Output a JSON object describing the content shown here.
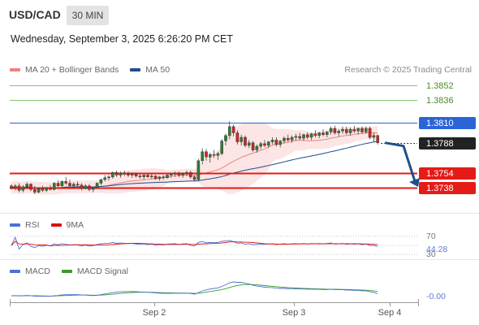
{
  "header": {
    "symbol": "USD/CAD",
    "interval": "30 MIN",
    "datetime": "Wednesday, September 3, 2025 6:26:20 PM CET"
  },
  "legend_price": [
    {
      "name": "MA 20 + Bollinger Bands",
      "color": "#f08080"
    },
    {
      "name": "MA 50",
      "color": "#1f4e8c"
    }
  ],
  "credit": "Research © 2025 Trading Central",
  "legend_rsi": [
    {
      "name": "RSI",
      "color": "#4a72d4"
    },
    {
      "name": "9MA",
      "color": "#dd1111"
    }
  ],
  "legend_macd": [
    {
      "name": "MACD",
      "color": "#4a72d4"
    },
    {
      "name": "MACD Signal",
      "color": "#3a9a2a"
    }
  ],
  "chart_data": {
    "type": "candlestick",
    "price_ylim": [
      1.371,
      1.386
    ],
    "levels": [
      {
        "value": 1.3852,
        "label": "1.3852",
        "kind": "resistance",
        "color": "#86c46b"
      },
      {
        "value": 1.3836,
        "label": "1.3836",
        "kind": "resistance",
        "color": "#86c46b"
      },
      {
        "value": 1.381,
        "label": "1.3810",
        "kind": "pivot",
        "color": "#2a64d6"
      },
      {
        "value": 1.3788,
        "label": "1.3788",
        "kind": "last",
        "color": "#222222"
      },
      {
        "value": 1.3754,
        "label": "1.3754",
        "kind": "support",
        "color": "#e41b17"
      },
      {
        "value": 1.3738,
        "label": "1.3738",
        "kind": "support",
        "color": "#e41b17"
      }
    ],
    "forecast_arrow": {
      "from": 1.3788,
      "to": 1.3738
    },
    "candles": [
      [
        1.374,
        1.3742,
        1.3736,
        1.3738
      ],
      [
        1.3738,
        1.3742,
        1.3735,
        1.374
      ],
      [
        1.374,
        1.3743,
        1.3733,
        1.3735
      ],
      [
        1.3735,
        1.3741,
        1.3733,
        1.3739
      ],
      [
        1.3739,
        1.3744,
        1.3737,
        1.3742
      ],
      [
        1.3742,
        1.3743,
        1.3734,
        1.3736
      ],
      [
        1.3736,
        1.374,
        1.3731,
        1.3733
      ],
      [
        1.3733,
        1.3738,
        1.3732,
        1.3737
      ],
      [
        1.3737,
        1.374,
        1.3733,
        1.3735
      ],
      [
        1.3735,
        1.3739,
        1.3733,
        1.3738
      ],
      [
        1.3738,
        1.3741,
        1.3735,
        1.3736
      ],
      [
        1.3736,
        1.3744,
        1.3735,
        1.3743
      ],
      [
        1.3743,
        1.3746,
        1.3738,
        1.374
      ],
      [
        1.374,
        1.3746,
        1.3739,
        1.3745
      ],
      [
        1.3745,
        1.375,
        1.3741,
        1.3743
      ],
      [
        1.3743,
        1.3747,
        1.3738,
        1.374
      ],
      [
        1.374,
        1.3744,
        1.3737,
        1.3742
      ],
      [
        1.3742,
        1.3745,
        1.3739,
        1.3741
      ],
      [
        1.3741,
        1.3743,
        1.3735,
        1.3737
      ],
      [
        1.3737,
        1.3742,
        1.3736,
        1.374
      ],
      [
        1.374,
        1.3742,
        1.3734,
        1.3736
      ],
      [
        1.3736,
        1.3739,
        1.3733,
        1.3738
      ],
      [
        1.3738,
        1.3744,
        1.3737,
        1.3743
      ],
      [
        1.3743,
        1.3748,
        1.3741,
        1.3747
      ],
      [
        1.3747,
        1.3752,
        1.3745,
        1.3749
      ],
      [
        1.3749,
        1.3752,
        1.3746,
        1.375
      ],
      [
        1.375,
        1.3756,
        1.3748,
        1.3755
      ],
      [
        1.3755,
        1.3757,
        1.375,
        1.3752
      ],
      [
        1.3752,
        1.3756,
        1.3749,
        1.3754
      ],
      [
        1.3754,
        1.3757,
        1.3751,
        1.3753
      ],
      [
        1.3753,
        1.3756,
        1.375,
        1.3752
      ],
      [
        1.3752,
        1.3755,
        1.3749,
        1.3753
      ],
      [
        1.3753,
        1.3755,
        1.3749,
        1.3751
      ],
      [
        1.3751,
        1.3754,
        1.3748,
        1.375
      ],
      [
        1.375,
        1.3753,
        1.3747,
        1.3752
      ],
      [
        1.3752,
        1.3754,
        1.3749,
        1.375
      ],
      [
        1.375,
        1.3753,
        1.3748,
        1.3751
      ],
      [
        1.3751,
        1.3752,
        1.3747,
        1.3748
      ],
      [
        1.3748,
        1.3751,
        1.3746,
        1.375
      ],
      [
        1.375,
        1.3752,
        1.3747,
        1.3749
      ],
      [
        1.3749,
        1.3753,
        1.3748,
        1.3752
      ],
      [
        1.3752,
        1.3754,
        1.3749,
        1.3753
      ],
      [
        1.3753,
        1.3756,
        1.375,
        1.3754
      ],
      [
        1.3754,
        1.3756,
        1.375,
        1.3752
      ],
      [
        1.3752,
        1.3755,
        1.3749,
        1.3754
      ],
      [
        1.3754,
        1.3757,
        1.3751,
        1.3755
      ],
      [
        1.3755,
        1.3757,
        1.3748,
        1.375
      ],
      [
        1.375,
        1.3752,
        1.3745,
        1.3747
      ],
      [
        1.3747,
        1.377,
        1.3745,
        1.3768
      ],
      [
        1.3768,
        1.3782,
        1.3764,
        1.3778
      ],
      [
        1.3778,
        1.3781,
        1.3768,
        1.3772
      ],
      [
        1.3772,
        1.3777,
        1.3766,
        1.3775
      ],
      [
        1.3775,
        1.378,
        1.3771,
        1.3774
      ],
      [
        1.3774,
        1.3778,
        1.3769,
        1.3776
      ],
      [
        1.3776,
        1.3792,
        1.3774,
        1.379
      ],
      [
        1.379,
        1.3798,
        1.3785,
        1.3796
      ],
      [
        1.3796,
        1.3812,
        1.3792,
        1.3806
      ],
      [
        1.3806,
        1.3808,
        1.3795,
        1.3799
      ],
      [
        1.3799,
        1.3802,
        1.3786,
        1.3789
      ],
      [
        1.3789,
        1.3797,
        1.3785,
        1.3794
      ],
      [
        1.3794,
        1.3796,
        1.3783,
        1.3785
      ],
      [
        1.3785,
        1.3791,
        1.3782,
        1.3788
      ],
      [
        1.3788,
        1.379,
        1.3778,
        1.378
      ],
      [
        1.378,
        1.3786,
        1.3777,
        1.3784
      ],
      [
        1.3784,
        1.3789,
        1.3781,
        1.3787
      ],
      [
        1.3787,
        1.3791,
        1.3783,
        1.3785
      ],
      [
        1.3785,
        1.379,
        1.3782,
        1.3789
      ],
      [
        1.3789,
        1.3794,
        1.3786,
        1.3791
      ],
      [
        1.3791,
        1.3794,
        1.3784,
        1.3786
      ],
      [
        1.3786,
        1.3791,
        1.3783,
        1.379
      ],
      [
        1.379,
        1.3795,
        1.3787,
        1.3793
      ],
      [
        1.3793,
        1.3797,
        1.3789,
        1.3791
      ],
      [
        1.3791,
        1.3796,
        1.3788,
        1.3794
      ],
      [
        1.3794,
        1.3798,
        1.379,
        1.3795
      ],
      [
        1.3795,
        1.3799,
        1.3791,
        1.3793
      ],
      [
        1.3793,
        1.3798,
        1.379,
        1.3797
      ],
      [
        1.3797,
        1.38,
        1.3792,
        1.3794
      ],
      [
        1.3794,
        1.3799,
        1.3791,
        1.3798
      ],
      [
        1.3798,
        1.3802,
        1.3794,
        1.3796
      ],
      [
        1.3796,
        1.38,
        1.3793,
        1.3799
      ],
      [
        1.3799,
        1.3803,
        1.3795,
        1.3797
      ],
      [
        1.3797,
        1.3801,
        1.3794,
        1.38
      ],
      [
        1.38,
        1.3806,
        1.3797,
        1.3804
      ],
      [
        1.3804,
        1.3807,
        1.3797,
        1.3799
      ],
      [
        1.3799,
        1.3803,
        1.3795,
        1.3801
      ],
      [
        1.3801,
        1.3806,
        1.3798,
        1.3803
      ],
      [
        1.3803,
        1.3806,
        1.3797,
        1.3799
      ],
      [
        1.3799,
        1.3805,
        1.3796,
        1.3803
      ],
      [
        1.3803,
        1.3807,
        1.3799,
        1.3801
      ],
      [
        1.3801,
        1.3805,
        1.3797,
        1.3804
      ],
      [
        1.3804,
        1.3806,
        1.3798,
        1.38
      ],
      [
        1.38,
        1.3806,
        1.3798,
        1.3804
      ],
      [
        1.3804,
        1.3806,
        1.3792,
        1.3794
      ],
      [
        1.3794,
        1.3799,
        1.3789,
        1.3796
      ],
      [
        1.3796,
        1.3797,
        1.3786,
        1.3788
      ]
    ],
    "rsi": {
      "axis_labels": [
        "70",
        "30"
      ],
      "current": "44.28",
      "range": [
        25,
        75
      ]
    },
    "macd": {
      "current": "-0.00"
    },
    "x_ticks": [
      "Sep 2",
      "Sep 3",
      "Sep 4"
    ]
  }
}
